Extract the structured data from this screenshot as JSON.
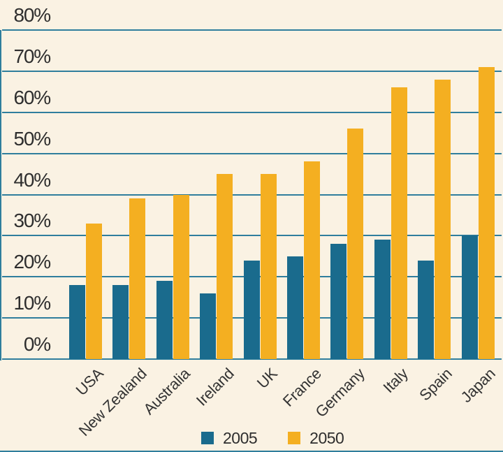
{
  "chart_data": {
    "type": "bar",
    "title": "",
    "xlabel": "",
    "ylabel": "",
    "categories": [
      "USA",
      "New Zealand",
      "Australia",
      "Ireland",
      "UK",
      "France",
      "Germany",
      "Italy",
      "Spain",
      "Japan"
    ],
    "series": [
      {
        "name": "2005",
        "color": "#1A6B8D",
        "values": [
          18,
          18,
          19,
          16,
          24,
          25,
          28,
          29,
          24,
          30
        ]
      },
      {
        "name": "2050",
        "color": "#F4AF21",
        "values": [
          33,
          39,
          40,
          45,
          45,
          48,
          56,
          66,
          68,
          71
        ]
      }
    ],
    "ylim": [
      0,
      80
    ],
    "y_ticks": [
      80,
      70,
      60,
      50,
      40,
      30,
      20,
      10,
      0
    ],
    "y_tick_labels": [
      "80%",
      "70%",
      "60%",
      "50%",
      "40%",
      "30%",
      "20%",
      "10%",
      "0%"
    ],
    "grid": true,
    "legend_position": "bottom"
  },
  "legend": {
    "items": [
      {
        "label": "2005"
      },
      {
        "label": "2050"
      }
    ]
  },
  "colors": {
    "background": "#FAF2E3",
    "series_2005": "#1A6B8D",
    "series_2050": "#F4AF21",
    "gridline": "#2F7E9D",
    "text": "#2E2E2E"
  }
}
